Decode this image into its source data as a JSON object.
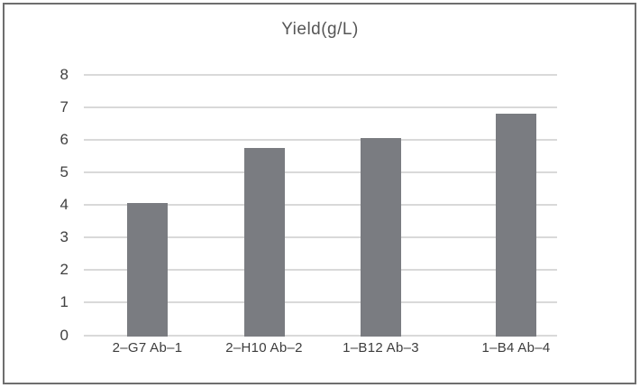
{
  "chart_data": {
    "type": "bar",
    "title": "Yield(g/L)",
    "categories": [
      "2–G7 Ab–1",
      "2–H10 Ab–2",
      "1–B12 Ab–3",
      "1–B4 Ab–4"
    ],
    "values": [
      4.05,
      5.75,
      6.05,
      6.8
    ],
    "xlabel": "",
    "ylabel": "",
    "ylim": [
      0,
      8
    ],
    "yticks": [
      0,
      1,
      2,
      3,
      4,
      5,
      6,
      7,
      8
    ],
    "grid": true,
    "legend": false,
    "colors": {
      "bar": "#7a7c81",
      "gridline": "#d9d9d9",
      "tick_text": "#404040",
      "category_text": "#3d3d3d",
      "title_text": "#565656",
      "frame_border": "#6e6e6e",
      "background": "#ffffff"
    }
  }
}
